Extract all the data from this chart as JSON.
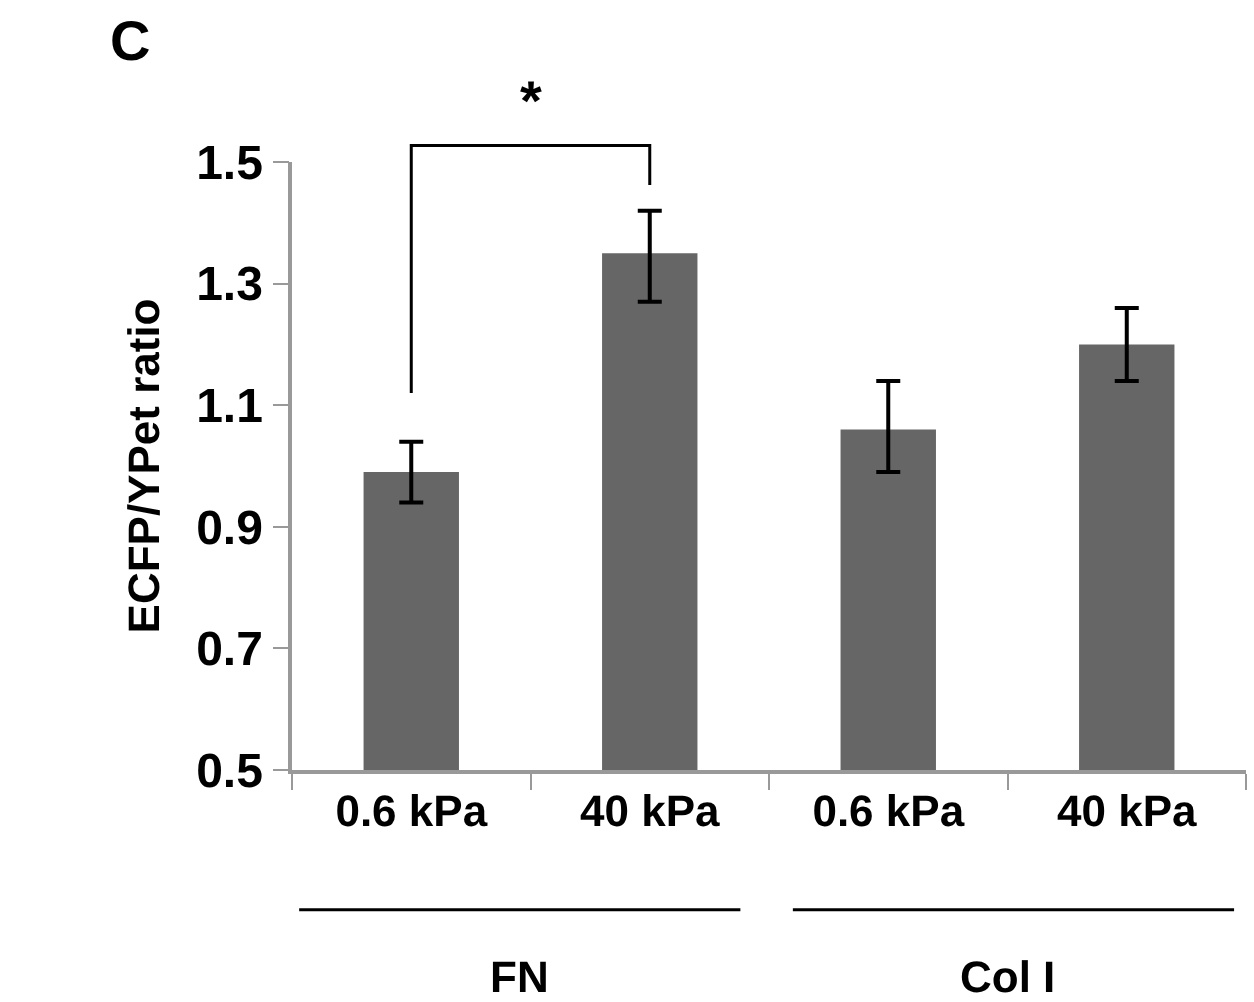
{
  "chart_data": {
    "type": "bar",
    "ylabel": "ECFP/YPet ratio",
    "categories": [
      "0.6 kPa",
      "40 kPa",
      "0.6 kPa",
      "40 kPa"
    ],
    "values": [
      0.99,
      1.35,
      1.06,
      1.2
    ],
    "errors": [
      [
        0.94,
        1.04
      ],
      [
        1.27,
        1.42
      ],
      [
        0.99,
        1.14
      ],
      [
        1.14,
        1.26
      ]
    ],
    "color": "#666666",
    "ylim": [
      0.5,
      1.5
    ],
    "yticks": [
      0.5,
      0.7,
      0.9,
      1.1,
      1.3,
      1.5
    ],
    "grid": false,
    "annotations": [
      "C",
      "*",
      "FN",
      "Col I"
    ]
  }
}
